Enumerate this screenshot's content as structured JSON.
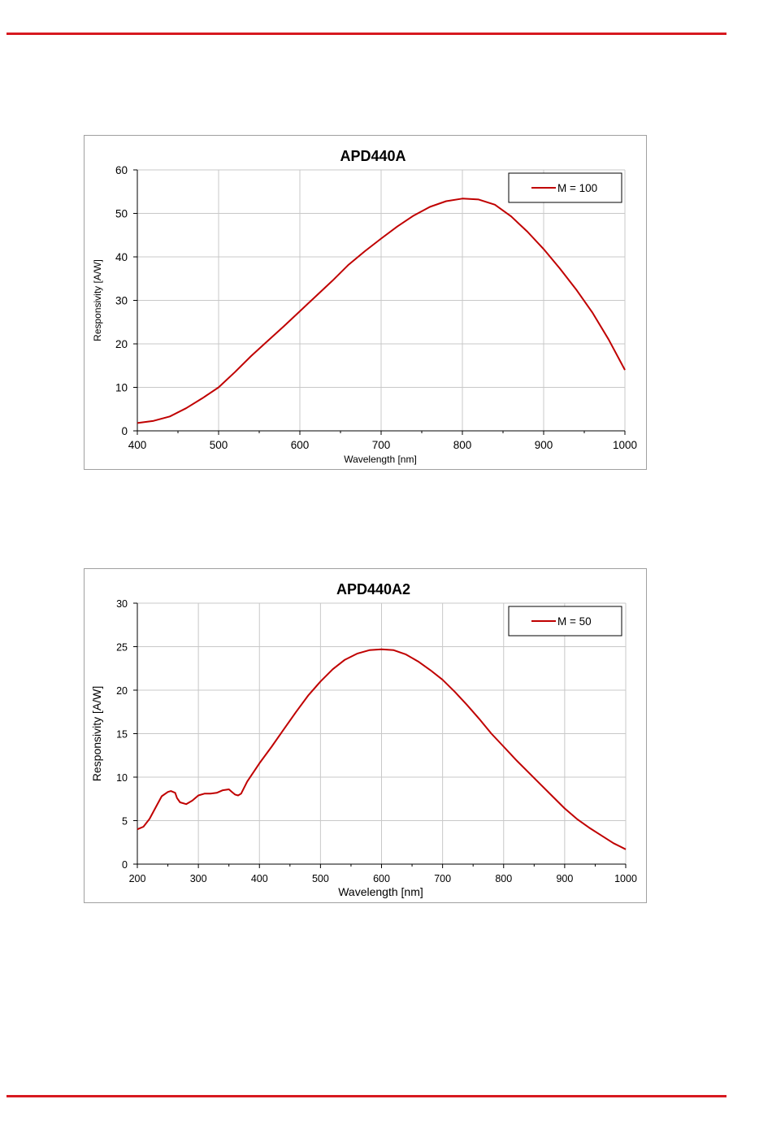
{
  "colors": {
    "accent": "#d71920",
    "series": "#c00000",
    "grid": "#c8c8c8",
    "axis": "#000000",
    "frame": "#a0a0a0"
  },
  "chart_data": [
    {
      "type": "line",
      "title": "APD440A",
      "xlabel": "Wavelength [nm]",
      "ylabel": "Responsivity [A/W]",
      "xlim": [
        400,
        1000
      ],
      "ylim": [
        0,
        60
      ],
      "xticks": [
        400,
        500,
        600,
        700,
        800,
        900,
        1000
      ],
      "yticks": [
        0,
        10,
        20,
        30,
        40,
        50,
        60
      ],
      "grid": true,
      "legend_position": "top-right",
      "series": [
        {
          "name": "M = 100",
          "x": [
            400,
            420,
            440,
            460,
            480,
            500,
            520,
            540,
            560,
            580,
            600,
            620,
            640,
            660,
            680,
            700,
            720,
            740,
            760,
            780,
            800,
            820,
            840,
            860,
            880,
            900,
            920,
            940,
            960,
            980,
            1000
          ],
          "y": [
            1.8,
            2.3,
            3.3,
            5.2,
            7.5,
            10.0,
            13.5,
            17.2,
            20.6,
            24.0,
            27.5,
            31.0,
            34.5,
            38.2,
            41.3,
            44.2,
            47.0,
            49.5,
            51.5,
            52.8,
            53.4,
            53.2,
            52.0,
            49.3,
            45.8,
            41.8,
            37.3,
            32.5,
            27.2,
            21.0,
            14.0
          ]
        }
      ]
    },
    {
      "type": "line",
      "title": "APD440A2",
      "xlabel": "Wavelength [nm]",
      "ylabel": "Responsivity [A/W]",
      "xlim": [
        200,
        1000
      ],
      "ylim": [
        0,
        30
      ],
      "xticks": [
        200,
        300,
        400,
        500,
        600,
        700,
        800,
        900,
        1000
      ],
      "yticks": [
        0,
        5,
        10,
        15,
        20,
        25,
        30
      ],
      "grid": true,
      "legend_position": "top-right",
      "series": [
        {
          "name": "M = 50",
          "x": [
            200,
            210,
            220,
            230,
            240,
            250,
            255,
            262,
            265,
            270,
            280,
            290,
            300,
            310,
            320,
            330,
            340,
            350,
            355,
            360,
            365,
            370,
            380,
            400,
            420,
            440,
            460,
            480,
            500,
            520,
            540,
            560,
            580,
            600,
            620,
            640,
            660,
            680,
            700,
            720,
            740,
            760,
            780,
            800,
            820,
            840,
            860,
            880,
            900,
            920,
            940,
            960,
            980,
            1000
          ],
          "y": [
            4.0,
            4.3,
            5.2,
            6.5,
            7.8,
            8.3,
            8.4,
            8.2,
            7.6,
            7.1,
            6.9,
            7.3,
            7.9,
            8.1,
            8.1,
            8.2,
            8.5,
            8.6,
            8.3,
            8.0,
            7.9,
            8.1,
            9.5,
            11.6,
            13.5,
            15.5,
            17.5,
            19.4,
            21.0,
            22.4,
            23.5,
            24.2,
            24.6,
            24.7,
            24.6,
            24.1,
            23.3,
            22.3,
            21.2,
            19.8,
            18.3,
            16.7,
            15.0,
            13.5,
            12.0,
            10.6,
            9.2,
            7.8,
            6.4,
            5.2,
            4.2,
            3.3,
            2.4,
            1.7
          ]
        }
      ]
    }
  ]
}
